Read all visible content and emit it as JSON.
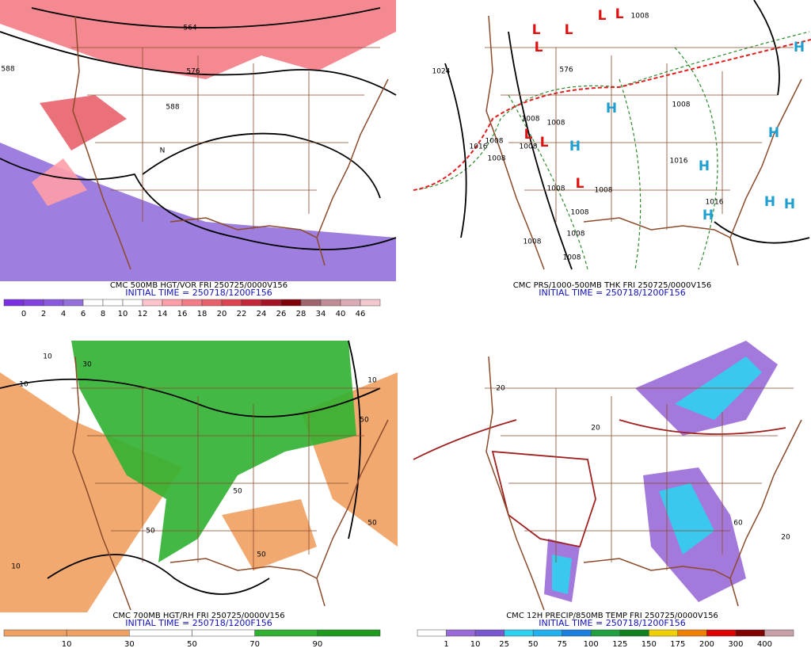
{
  "panels": [
    {
      "caption": "CMC 500MB HGT/VOR FRI 250725/0000V156",
      "initial_time": "INITIAL TIME = 250718/1200F156",
      "contour_labels": [
        "564",
        "576",
        "588",
        "588",
        "N"
      ],
      "colorbar": {
        "colors": [
          "#7a2fe0",
          "#8242e0",
          "#8a58de",
          "#9370db",
          "#ffffff",
          "#ffffff",
          "#ffffff",
          "#ffc4cc",
          "#ff9ea8",
          "#f47c86",
          "#e8606a",
          "#dc4450",
          "#c42838",
          "#a41424",
          "#800008",
          "#a0646e",
          "#c08c96",
          "#dcacb6",
          "#f4c8d0"
        ],
        "labels": [
          "0",
          "2",
          "4",
          "6",
          "8",
          "10",
          "12",
          "14",
          "16",
          "18",
          "20",
          "22",
          "24",
          "26",
          "28",
          "34",
          "40",
          "46"
        ]
      }
    },
    {
      "caption": "CMC PRS/1000-500MB THK FRI 250725/0000V156",
      "initial_time": "INITIAL TIME = 250718/1200F156",
      "contour_labels": [
        "1024",
        "576",
        "1008",
        "1016",
        "1016",
        "1016",
        "1008",
        "1008",
        "1008",
        "1008",
        "1008",
        "1008",
        "1008",
        "1008",
        "1008",
        "1008",
        "1008",
        "1008"
      ],
      "pressure_centers": [
        "L",
        "L",
        "L",
        "L",
        "L",
        "L",
        "L",
        "L",
        "H",
        "H",
        "H",
        "H",
        "H",
        "H",
        "H",
        "H"
      ]
    },
    {
      "caption": "CMC 700MB HGT/RH FRI 250725/0000V156",
      "initial_time": "INITIAL TIME = 250718/1200F156",
      "contour_labels": [
        "10",
        "10",
        "50",
        "50",
        "50",
        "50",
        "10",
        "30",
        "50",
        "10"
      ],
      "colorbar": {
        "colors": [
          "#f0a060",
          "#f0a060",
          "#ffffff",
          "#ffffff",
          "#30b030",
          "#1e9a1e"
        ],
        "labels": [
          "10",
          "30",
          "50",
          "70",
          "90"
        ]
      }
    },
    {
      "caption": "CMC 12H PRECIP/850MB TEMP FRI 250725/0000V156",
      "initial_time": "INITIAL TIME = 250718/1200F156",
      "contour_labels": [
        "60",
        "20",
        "20",
        "20"
      ],
      "colorbar": {
        "colors": [
          "#ffffff",
          "#9a6ad8",
          "#7a58d0",
          "#30d0f0",
          "#20b0f0",
          "#1a80e0",
          "#20a040",
          "#108020",
          "#f0d000",
          "#f08000",
          "#e00000",
          "#800000",
          "#c8a0a8"
        ],
        "labels": [
          "1",
          "10",
          "25",
          "50",
          "75",
          "100",
          "125",
          "150",
          "175",
          "200",
          "300",
          "400"
        ]
      }
    }
  ]
}
